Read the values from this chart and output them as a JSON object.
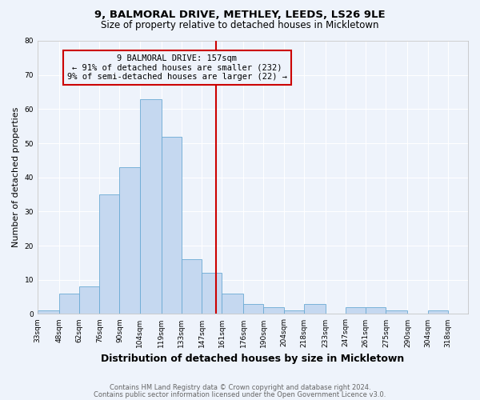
{
  "title": "9, BALMORAL DRIVE, METHLEY, LEEDS, LS26 9LE",
  "subtitle": "Size of property relative to detached houses in Mickletown",
  "xlabel": "Distribution of detached houses by size in Mickletown",
  "ylabel": "Number of detached properties",
  "footer_line1": "Contains HM Land Registry data © Crown copyright and database right 2024.",
  "footer_line2": "Contains public sector information licensed under the Open Government Licence v3.0.",
  "annotation_line1": "9 BALMORAL DRIVE: 157sqm",
  "annotation_line2": "← 91% of detached houses are smaller (232)",
  "annotation_line3": "9% of semi-detached houses are larger (22) →",
  "bar_edges": [
    33,
    48,
    62,
    76,
    90,
    104,
    119,
    133,
    147,
    161,
    176,
    190,
    204,
    218,
    233,
    247,
    261,
    275,
    290,
    304,
    318
  ],
  "bar_heights": [
    1,
    6,
    8,
    35,
    43,
    63,
    52,
    16,
    12,
    6,
    3,
    2,
    1,
    3,
    0,
    2,
    2,
    1,
    0,
    1,
    0
  ],
  "bar_color": "#c5d8f0",
  "bar_edge_color": "#6aaad4",
  "vline_color": "#cc0000",
  "vline_x": 157,
  "annotation_box_color": "#cc0000",
  "background_color": "#eef3fb",
  "ylim": [
    0,
    80
  ],
  "yticks": [
    0,
    10,
    20,
    30,
    40,
    50,
    60,
    70,
    80
  ],
  "grid_color": "#ffffff",
  "title_fontsize": 9.5,
  "subtitle_fontsize": 8.5,
  "ylabel_fontsize": 8,
  "xlabel_fontsize": 9,
  "tick_fontsize": 6.5,
  "ann_fontsize": 7.5,
  "footer_fontsize": 6
}
